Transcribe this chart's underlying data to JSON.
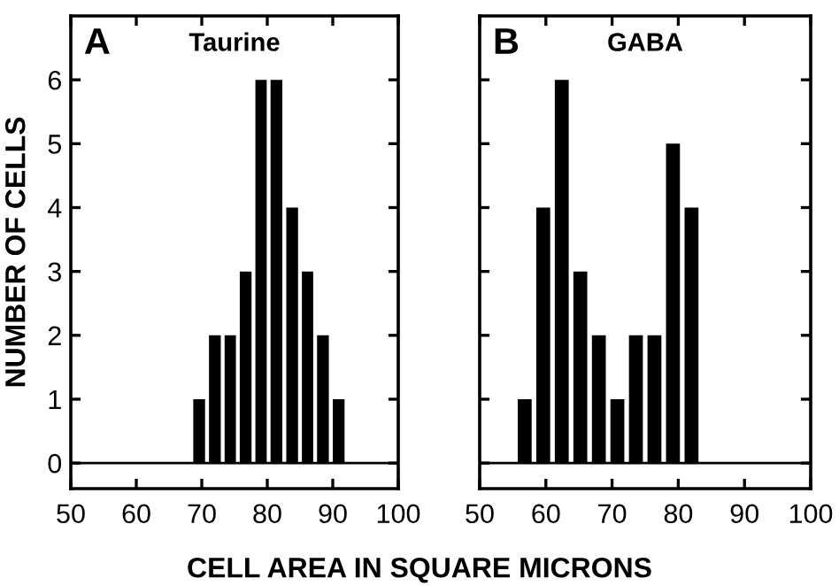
{
  "chart_data": [
    {
      "type": "histogram",
      "title": "Taurine",
      "ylabel": "NUMBER OF CELLS",
      "xlabel": "CELL AREA IN SQUARE MICRONS",
      "annotations": [
        "A"
      ],
      "bins": [
        68.4,
        70.8,
        73.2,
        75.5,
        77.9,
        80.2,
        82.6,
        85.0,
        87.3,
        89.7,
        92.1
      ],
      "values": [
        1,
        2,
        2,
        3,
        6,
        6,
        4,
        3,
        2,
        1
      ],
      "color": "#000000",
      "xlim": [
        50,
        100
      ],
      "xticks": [
        50,
        60,
        70,
        80,
        90,
        100
      ],
      "ylim": [
        -0.4,
        7.0
      ],
      "yticks": [
        0,
        1,
        2,
        3,
        4,
        5,
        6
      ],
      "ref_lines": [
        {
          "axis": "y",
          "value": 0,
          "color": "#000000"
        }
      ],
      "grid": false,
      "legend": false
    },
    {
      "type": "histogram",
      "title": "GABA",
      "annotations": [
        "B"
      ],
      "bins": [
        55.4,
        58.2,
        61.0,
        63.8,
        66.6,
        69.4,
        72.2,
        75.0,
        77.8,
        80.6,
        83.4
      ],
      "values": [
        1,
        4,
        6,
        3,
        2,
        1,
        2,
        2,
        5,
        4
      ],
      "color": "#000000",
      "xlim": [
        50,
        100
      ],
      "xticks": [
        50,
        60,
        70,
        80,
        90,
        100
      ],
      "ylim": [
        -0.4,
        7.0
      ],
      "yticks": [
        0,
        1,
        2,
        3,
        4,
        5,
        6
      ],
      "ref_lines": [
        {
          "axis": "y",
          "value": 0,
          "color": "#000000"
        }
      ],
      "grid": false,
      "legend": false,
      "tick_labels": "x"
    }
  ]
}
